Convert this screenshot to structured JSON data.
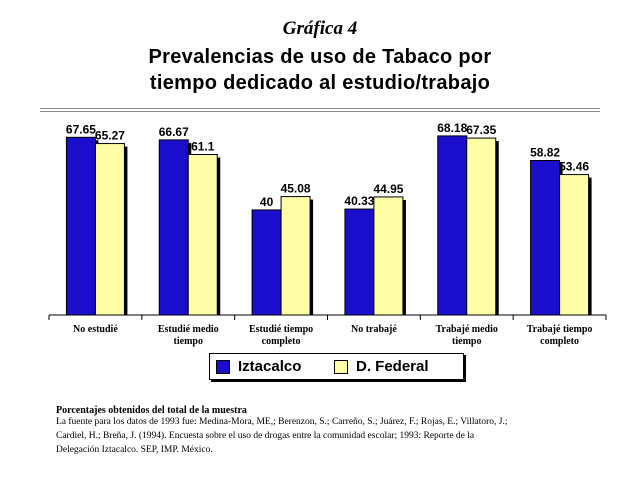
{
  "kicker": "Gráfica 4",
  "chart_data": {
    "type": "bar",
    "title_lines": [
      "Prevalencias de uso de Tabaco por",
      "tiempo dedicado al estudio/trabajo"
    ],
    "categories": [
      [
        "No estudié"
      ],
      [
        "Estudié medio",
        "tiempo"
      ],
      [
        "Estudié tiempo",
        "completo"
      ],
      [
        "No trabajé"
      ],
      [
        "Trabajé medio",
        "tiempo"
      ],
      [
        "Trabajé tiempo",
        "completo"
      ]
    ],
    "series": [
      {
        "name": "Iztacalco",
        "values": [
          67.65,
          66.67,
          40,
          40.33,
          68.18,
          58.82
        ],
        "labels": [
          "67.65",
          "66.67",
          "40",
          "40.33",
          "68.18",
          "58.82"
        ],
        "color": "#1a0dcc"
      },
      {
        "name": "D. Federal",
        "values": [
          65.27,
          61.1,
          45.08,
          44.95,
          67.35,
          53.46
        ],
        "labels": [
          "65.27",
          "61.1",
          "45.08",
          "44.95",
          "67.35",
          "53.46"
        ],
        "color": "#ffffa8"
      }
    ],
    "ylim": [
      0,
      75
    ],
    "legend_position": "bottom",
    "grid": false
  },
  "notes": {
    "heading": "Porcentajes obtenidos del total de la muestra",
    "lines": [
      "La fuente para los datos de 1993 fue: Medina-Mora, ME,; Berenzon, S.; Carreño, S.; Juárez, F.; Rojas, E.; Villatoro, J.;",
      "Cardiel, H.; Breña, J. (1994). Encuesta sobre el uso de drogas entre la comunidad escolar; 1993: Reporte de la",
      "Delegación Iztacalco. SEP, IMP. México."
    ]
  }
}
